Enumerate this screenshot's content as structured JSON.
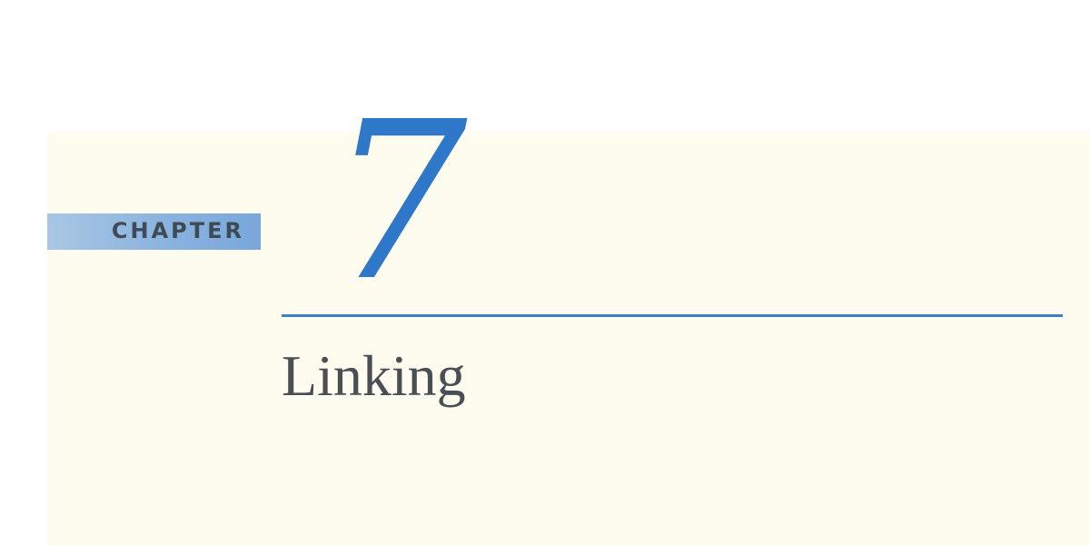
{
  "chapter": {
    "label": "CHAPTER",
    "number": "7",
    "title": "Linking"
  },
  "colors": {
    "accent_blue": "#2f78c9",
    "label_band": "#8ab3de",
    "paper": "#fefcef",
    "title_text": "#4a4f56"
  }
}
